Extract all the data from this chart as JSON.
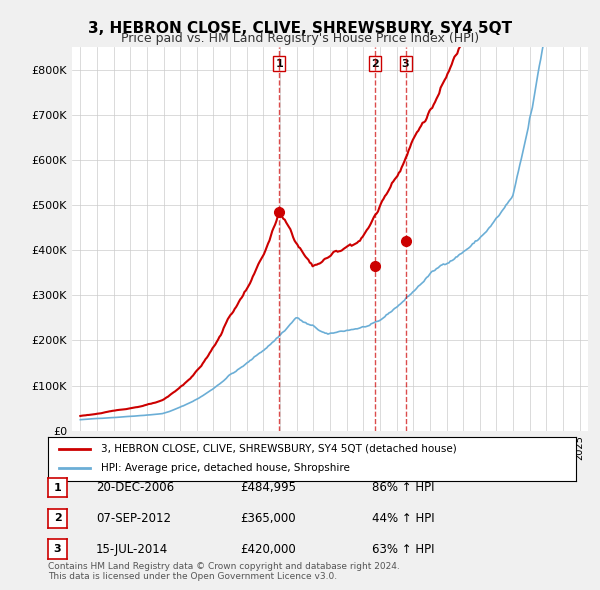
{
  "title": "3, HEBRON CLOSE, CLIVE, SHREWSBURY, SY4 5QT",
  "subtitle": "Price paid vs. HM Land Registry's House Price Index (HPI)",
  "ylabel": "",
  "xlabel": "",
  "ylim": [
    0,
    850000
  ],
  "yticks": [
    0,
    100000,
    200000,
    300000,
    400000,
    500000,
    600000,
    700000,
    800000
  ],
  "ytick_labels": [
    "£0",
    "£100K",
    "£200K",
    "£300K",
    "£400K",
    "£500K",
    "£600K",
    "£700K",
    "£800K"
  ],
  "hpi_color": "#6baed6",
  "price_color": "#cc0000",
  "vline_color": "#cc0000",
  "sale_marker_color": "#cc0000",
  "transactions": [
    {
      "num": 1,
      "date_str": "20-DEC-2006",
      "year": 2006.96,
      "price": 484995,
      "pct": "86% ↑ HPI"
    },
    {
      "num": 2,
      "date_str": "07-SEP-2012",
      "year": 2012.68,
      "price": 365000,
      "pct": "44% ↑ HPI"
    },
    {
      "num": 3,
      "date_str": "15-JUL-2014",
      "year": 2014.54,
      "price": 420000,
      "pct": "63% ↑ HPI"
    }
  ],
  "legend_property_label": "3, HEBRON CLOSE, CLIVE, SHREWSBURY, SY4 5QT (detached house)",
  "legend_hpi_label": "HPI: Average price, detached house, Shropshire",
  "footnote": "Contains HM Land Registry data © Crown copyright and database right 2024.\nThis data is licensed under the Open Government Licence v3.0.",
  "background_color": "#f0f0f0",
  "plot_bg_color": "#ffffff"
}
